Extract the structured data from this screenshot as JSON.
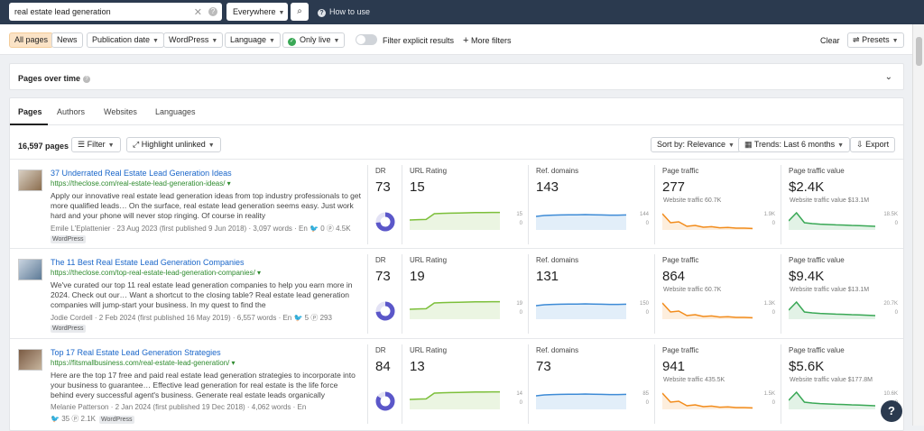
{
  "search": {
    "query": "real estate lead generation",
    "scope": "Everywhere",
    "how_to": "How to use"
  },
  "filters": {
    "all_pages": "All pages",
    "news": "News",
    "publication_date": "Publication date",
    "wordpress": "WordPress",
    "language": "Language",
    "only_live": "Only live",
    "filter_explicit": "Filter explicit results",
    "more_filters": "More filters",
    "clear": "Clear",
    "presets": "Presets"
  },
  "pages_over_time": "Pages over time",
  "tabs": [
    "Pages",
    "Authors",
    "Websites",
    "Languages"
  ],
  "toolbar": {
    "count": "16,597 pages",
    "filter": "Filter",
    "highlight": "Highlight unlinked",
    "sort": "Sort by: Relevance",
    "trends": "Trends: Last 6 months",
    "export": "Export"
  },
  "labels": {
    "dr": "DR",
    "url_rating": "URL Rating",
    "ref_domains": "Ref. domains",
    "page_traffic": "Page traffic",
    "traffic_value": "Page traffic value"
  },
  "results": [
    {
      "title": "37 Underrated Real Estate Lead Generation Ideas",
      "url": "https://theclose.com/real-estate-lead-generation-ideas/",
      "snippet": "Apply our innovative real estate lead generation ideas from top industry professionals to get more qualified leads… On the surface, real estate lead generation seems easy. Just work hard and your phone will never stop ringing. Of course in reality",
      "meta": "Emile L'Eplattenier · 23 Aug 2023 (first published 9 Jun 2018) · 3,097 words · En",
      "meta_twitter": "0",
      "meta_pinterest": "4.5K",
      "badge": "WordPress",
      "dr": "73",
      "dr_fraction": 0.73,
      "ur": "15",
      "ur_max": "15",
      "ur_min": "0",
      "rd": "143",
      "rd_max": "144",
      "rd_min": "0",
      "traffic": "277",
      "traffic_sub": "Website traffic 60.7K",
      "traffic_max": "1.9K",
      "traffic_min": "0",
      "value": "$2.4K",
      "value_sub": "Website traffic value $13.1M",
      "value_max": "18.5K",
      "value_min": "0"
    },
    {
      "title": "The 11 Best Real Estate Lead Generation Companies",
      "url": "https://theclose.com/top-real-estate-lead-generation-companies/",
      "snippet": "We've curated our top 11 real estate lead generation companies to help you earn more in 2024. Check out our… Want a shortcut to the closing table? Real estate lead generation companies will jump-start your business. In my quest to find the",
      "meta": "Jodie Cordell · 2 Feb 2024 (first published 16 May 2019) · 6,557 words · En",
      "meta_twitter": "5",
      "meta_pinterest": "293",
      "badge": "WordPress",
      "dr": "73",
      "dr_fraction": 0.73,
      "ur": "19",
      "ur_max": "19",
      "ur_min": "0",
      "rd": "131",
      "rd_max": "150",
      "rd_min": "0",
      "traffic": "864",
      "traffic_sub": "Website traffic 60.7K",
      "traffic_max": "1.3K",
      "traffic_min": "0",
      "value": "$9.4K",
      "value_sub": "Website traffic value $13.1M",
      "value_max": "20.7K",
      "value_min": "0"
    },
    {
      "title": "Top 17 Real Estate Lead Generation Strategies",
      "url": "https://fitsmallbusiness.com/real-estate-lead-generation/",
      "snippet": "Here are the top 17 free and paid real estate lead generation strategies to incorporate into your business to guarantee… Effective lead generation for real estate is the life force behind every successful agent's business. Generate real estate leads organically",
      "meta": "Melanie Patterson · 2 Jan 2024 (first published 19 Dec 2018) · 4,062 words · En",
      "meta_twitter": "35",
      "meta_pinterest": "2.1K",
      "badge": "WordPress",
      "dr": "84",
      "dr_fraction": 0.84,
      "ur": "13",
      "ur_max": "14",
      "ur_min": "0",
      "rd": "73",
      "rd_max": "85",
      "rd_min": "0",
      "traffic": "941",
      "traffic_sub": "Website traffic 435.5K",
      "traffic_max": "1.5K",
      "traffic_min": "0",
      "value": "$5.6K",
      "value_sub": "Website traffic value $177.8M",
      "value_max": "10.6K",
      "value_min": "0"
    }
  ],
  "colors": {
    "topbar": "#2b3a4f",
    "link": "#1a66c9",
    "url": "#2e8b2e",
    "ur_line": "#7cbf3a",
    "rd_line": "#3e8bd6",
    "traffic_line": "#f28c1c",
    "value_line": "#3aa856",
    "donut": "#5b57c9"
  }
}
